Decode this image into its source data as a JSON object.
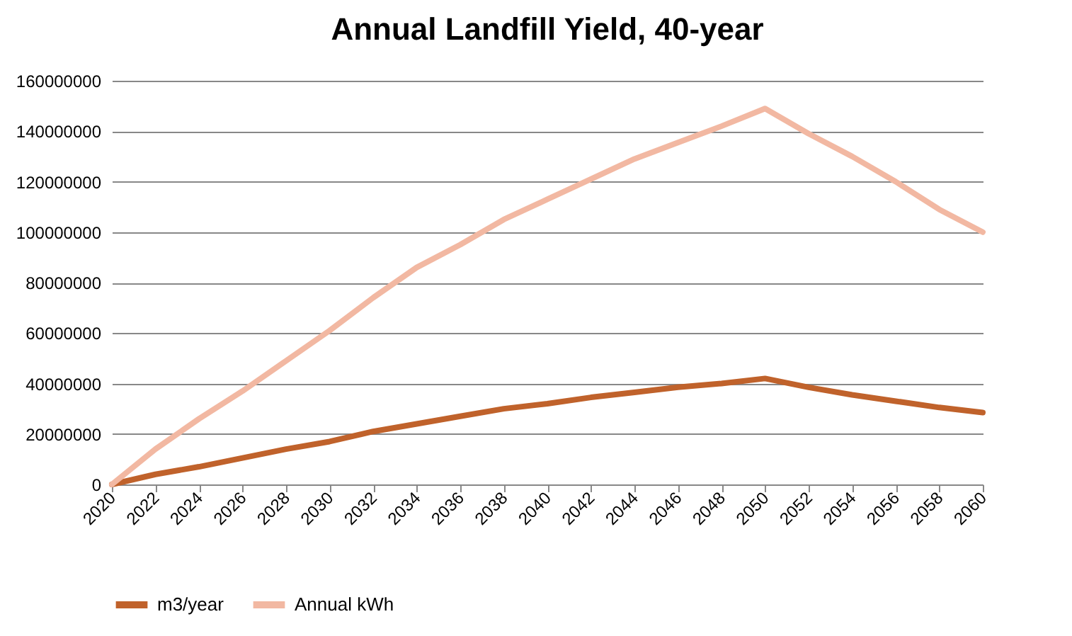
{
  "chart_data": {
    "type": "line",
    "title": "Annual Landfill Yield, 40-year",
    "x": [
      2020,
      2022,
      2024,
      2026,
      2028,
      2030,
      2032,
      2034,
      2036,
      2038,
      2040,
      2042,
      2044,
      2046,
      2048,
      2050,
      2052,
      2054,
      2056,
      2058,
      2060
    ],
    "series": [
      {
        "name": "m3/year",
        "color": "#c0622b",
        "values": [
          0,
          4000000,
          7000000,
          10500000,
          14000000,
          17000000,
          21000000,
          24000000,
          27000000,
          30000000,
          32000000,
          34500000,
          36500000,
          38500000,
          40000000,
          42000000,
          38500000,
          35500000,
          33000000,
          30500000,
          28500000
        ]
      },
      {
        "name": "Annual kWh",
        "color": "#f2b8a2",
        "values": [
          0,
          14000000,
          26000000,
          37000000,
          49000000,
          61000000,
          74000000,
          86000000,
          95000000,
          105000000,
          113000000,
          121000000,
          129000000,
          135500000,
          142000000,
          149000000,
          139000000,
          130000000,
          120000000,
          109000000,
          100000000
        ]
      }
    ],
    "xlim": [
      2020,
      2060
    ],
    "xticks": [
      2020,
      2022,
      2024,
      2026,
      2028,
      2030,
      2032,
      2034,
      2036,
      2038,
      2040,
      2042,
      2044,
      2046,
      2048,
      2050,
      2052,
      2054,
      2056,
      2058,
      2060
    ],
    "ylim": [
      0,
      160000000
    ],
    "yticks": [
      0,
      20000000,
      40000000,
      60000000,
      80000000,
      100000000,
      120000000,
      140000000,
      160000000
    ],
    "grid": "y",
    "legend": "bottom",
    "marker": "none",
    "line_style": "solid"
  }
}
